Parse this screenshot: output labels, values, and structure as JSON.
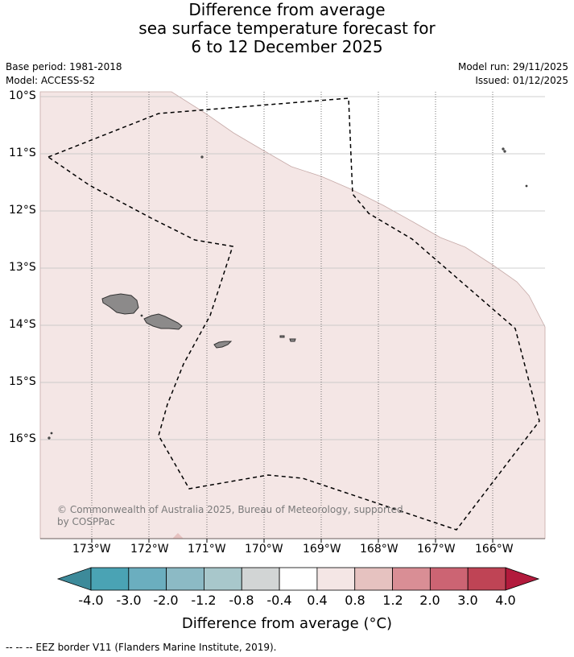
{
  "title": {
    "line1": "Difference from average",
    "line2": "sea surface temperature forecast for",
    "line3": "6 to 12 December 2025"
  },
  "meta": {
    "base_period": "Base period: 1981-2018",
    "model": "Model: ACCESS-S2",
    "model_run": "Model run: 29/11/2025",
    "issued": "Issued: 01/12/2025"
  },
  "map": {
    "lat_labels": [
      "10°S",
      "11°S",
      "12°S",
      "13°S",
      "14°S",
      "15°S",
      "16°S"
    ],
    "lon_labels": [
      "173°W",
      "172°W",
      "171°W",
      "170°W",
      "169°W",
      "168°W",
      "167°W",
      "166°W"
    ],
    "copyright_line1": "© Commonwealth of Australia 2025, Bureau of Meteorology, supported",
    "copyright_line2": "by COSPPac",
    "colors": {
      "anomaly_fill": "#f4e6e5",
      "land": "#8c8a8a",
      "eez": "#000000"
    }
  },
  "colorbar": {
    "title": "Difference from average (°C)",
    "labels": [
      "-4.0",
      "-3.0",
      "-2.0",
      "-1.2",
      "-0.8",
      "-0.4",
      "0.4",
      "0.8",
      "1.2",
      "2.0",
      "3.0",
      "4.0"
    ],
    "colors": [
      "#3d8a9a",
      "#4aa3b4",
      "#6baebf",
      "#8cbac5",
      "#a8c7cb",
      "#d2d5d5",
      "#ffffff",
      "#f4e6e5",
      "#e6c2c0",
      "#d98e95",
      "#cc6473",
      "#bf4455",
      "#b21a3c"
    ]
  },
  "footer": "--  --  -- EEZ border V11 (Flanders Marine Institute, 2019)."
}
